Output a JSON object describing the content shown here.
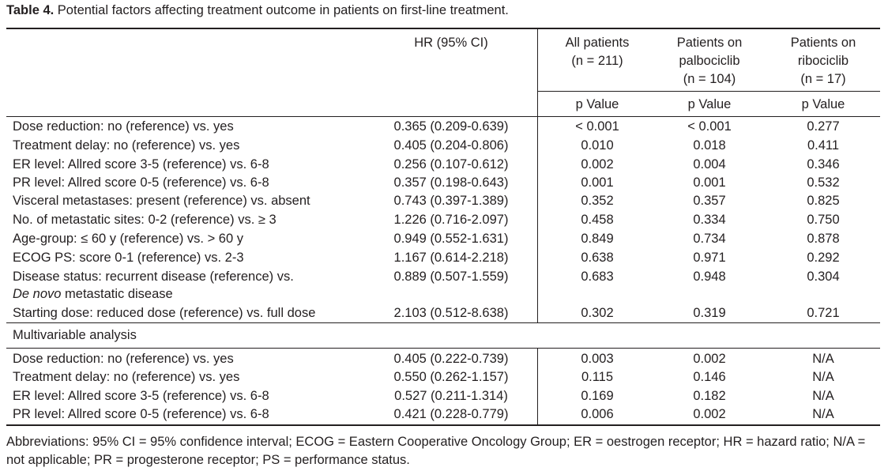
{
  "caption": {
    "label": "Table 4.",
    "text": " Potential factors affecting treatment outcome in patients on first-line treatment."
  },
  "headers": {
    "hr": "HR (95% CI)",
    "all_line1": "All patients",
    "all_line2": "(n = 211)",
    "pal_line1": "Patients on",
    "pal_line2": "palbociclib",
    "pal_line3": "(n = 104)",
    "rib_line1": "Patients on",
    "rib_line2": "ribociclib",
    "rib_line3": "(n = 17)",
    "pvalue": "p Value"
  },
  "univariable_rows": [
    {
      "factor": "Dose reduction: no (reference) vs. yes",
      "hr": "0.365 (0.209-0.639)",
      "all": "< 0.001",
      "pal": "< 0.001",
      "rib": "0.277"
    },
    {
      "factor": "Treatment delay: no (reference) vs. yes",
      "hr": "0.405 (0.204-0.806)",
      "all": "0.010",
      "pal": "0.018",
      "rib": "0.411"
    },
    {
      "factor": "ER level: Allred score 3-5 (reference) vs. 6-8",
      "hr": "0.256 (0.107-0.612)",
      "all": "0.002",
      "pal": "0.004",
      "rib": "0.346"
    },
    {
      "factor": "PR level: Allred score 0-5 (reference) vs. 6-8",
      "hr": "0.357 (0.198-0.643)",
      "all": "0.001",
      "pal": "0.001",
      "rib": "0.532"
    },
    {
      "factor": "Visceral metastases: present (reference) vs. absent",
      "hr": "0.743 (0.397-1.389)",
      "all": "0.352",
      "pal": "0.357",
      "rib": "0.825"
    },
    {
      "factor": "No. of metastatic sites: 0-2 (reference) vs. ≥ 3",
      "hr": "1.226 (0.716-2.097)",
      "all": "0.458",
      "pal": "0.334",
      "rib": "0.750"
    },
    {
      "factor": "Age-group: ≤ 60 y (reference) vs. > 60 y",
      "hr": "0.949 (0.552-1.631)",
      "all": "0.849",
      "pal": "0.734",
      "rib": "0.878"
    },
    {
      "factor": "ECOG PS: score 0-1 (reference) vs. 2-3",
      "hr": "1.167 (0.614-2.218)",
      "all": "0.638",
      "pal": "0.971",
      "rib": "0.292"
    },
    {
      "factor": "Disease status: recurrent disease (reference) vs.",
      "factor_italic": "De novo",
      "factor_rest": " metastatic disease",
      "hr": "0.889 (0.507-1.559)",
      "all": "0.683",
      "pal": "0.948",
      "rib": "0.304"
    },
    {
      "factor": "Starting dose: reduced dose (reference) vs. full dose",
      "hr": "2.103 (0.512-8.638)",
      "all": "0.302",
      "pal": "0.319",
      "rib": "0.721"
    }
  ],
  "multivariable_label": "Multivariable analysis",
  "multivariable_rows": [
    {
      "factor": "Dose reduction: no (reference) vs. yes",
      "hr": "0.405 (0.222-0.739)",
      "all": "0.003",
      "pal": "0.002",
      "rib": "N/A"
    },
    {
      "factor": "Treatment delay: no (reference) vs. yes",
      "hr": "0.550 (0.262-1.157)",
      "all": "0.115",
      "pal": "0.146",
      "rib": "N/A"
    },
    {
      "factor": "ER level: Allred score 3-5 (reference) vs. 6-8",
      "hr": "0.527 (0.211-1.314)",
      "all": "0.169",
      "pal": "0.182",
      "rib": "N/A"
    },
    {
      "factor": "PR level: Allred score 0-5 (reference) vs. 6-8",
      "hr": "0.421 (0.228-0.779)",
      "all": "0.006",
      "pal": "0.002",
      "rib": "N/A"
    }
  ],
  "footnote": "Abbreviations: 95% CI = 95% confidence interval; ECOG = Eastern Cooperative Oncology Group; ER = oestrogen receptor; HR = hazard ratio; N/A = not applicable; PR = progesterone receptor; PS = performance status."
}
